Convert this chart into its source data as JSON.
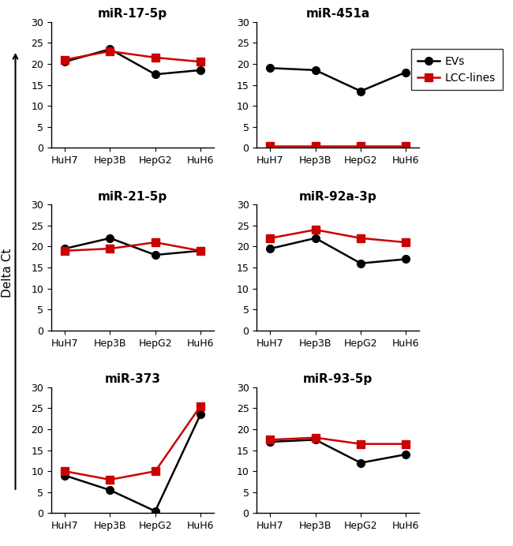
{
  "x_labels": [
    "HuH7",
    "Hep3B",
    "HepG2",
    "HuH6"
  ],
  "subplots": [
    {
      "title": "miR-17-5p",
      "evs": [
        20.5,
        23.5,
        17.5,
        18.5
      ],
      "lcc_lines": [
        21.0,
        23.0,
        21.5,
        20.5
      ]
    },
    {
      "title": "miR-451a",
      "evs": [
        19.0,
        18.5,
        13.5,
        18.0
      ],
      "lcc_lines": [
        0.5,
        0.5,
        0.5,
        0.5
      ]
    },
    {
      "title": "miR-21-5p",
      "evs": [
        19.5,
        22.0,
        18.0,
        19.0
      ],
      "lcc_lines": [
        19.0,
        19.5,
        21.0,
        19.0
      ]
    },
    {
      "title": "miR-92a-3p",
      "evs": [
        19.5,
        22.0,
        16.0,
        17.0
      ],
      "lcc_lines": [
        22.0,
        24.0,
        22.0,
        21.0
      ]
    },
    {
      "title": "miR-373",
      "evs": [
        9.0,
        5.5,
        0.5,
        23.5
      ],
      "lcc_lines": [
        10.0,
        8.0,
        10.0,
        25.5
      ]
    },
    {
      "title": "miR-93-5p",
      "evs": [
        17.0,
        17.5,
        12.0,
        14.0
      ],
      "lcc_lines": [
        17.5,
        18.0,
        16.5,
        16.5
      ]
    }
  ],
  "evs_color": "#000000",
  "lcc_color": "#cc0000",
  "evs_marker": "o",
  "lcc_marker": "s",
  "ylim": [
    0,
    30
  ],
  "yticks": [
    0,
    5,
    10,
    15,
    20,
    25,
    30
  ],
  "ylabel": "Delta Ct",
  "legend_labels": [
    "EVs",
    "LCC-lines"
  ],
  "marker_size": 7,
  "linewidth": 1.8,
  "title_fontsize": 11,
  "tick_fontsize": 9,
  "label_fontsize": 10
}
